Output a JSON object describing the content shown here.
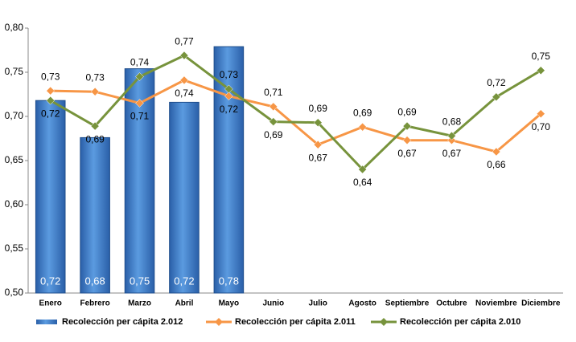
{
  "chart_data": {
    "type": "bar",
    "categories": [
      "Enero",
      "Febrero",
      "Marzo",
      "Abril",
      "Mayo",
      "Junio",
      "Julio",
      "Agosto",
      "Septiembre",
      "Octubre",
      "Noviembre",
      "Diciembre"
    ],
    "series": [
      {
        "name": "Recolección per cápita 2.012",
        "type": "bar",
        "color": "#3d7cc9",
        "values": [
          0.718,
          0.676,
          0.754,
          0.716,
          0.779,
          null,
          null,
          null,
          null,
          null,
          null,
          null
        ],
        "value_labels": [
          "0,72",
          "0,68",
          "0,75",
          "0,72",
          "0,78",
          null,
          null,
          null,
          null,
          null,
          null,
          null
        ]
      },
      {
        "name": "Recolección per cápita 2.011",
        "type": "line",
        "color": "#f79646",
        "values": [
          0.729,
          0.728,
          0.715,
          0.741,
          0.723,
          0.711,
          0.668,
          0.688,
          0.673,
          0.673,
          0.66,
          0.703
        ],
        "value_labels": [
          "0,73",
          "0,73",
          "0,71",
          "0,74",
          "0,72",
          "0,71",
          "0,67",
          "0,69",
          "0,67",
          "0,67",
          "0,66",
          "0,70"
        ]
      },
      {
        "name": "Recolección per cápita 2.010",
        "type": "line",
        "color": "#77933c",
        "values": [
          0.718,
          0.689,
          0.745,
          0.769,
          0.731,
          0.694,
          0.693,
          0.64,
          0.689,
          0.678,
          0.722,
          0.752
        ],
        "value_labels": [
          "0,72",
          "0,69",
          "0,74",
          "0,77",
          "0,73",
          "0,69",
          "0,69",
          "0,64",
          "0,69",
          "0,68",
          "0,72",
          "0,75"
        ]
      }
    ],
    "ylim": [
      0.5,
      0.8
    ],
    "yticks": [
      {
        "value": 0.5,
        "label": "0,50"
      },
      {
        "value": 0.55,
        "label": "0,55"
      },
      {
        "value": 0.6,
        "label": "0,60"
      },
      {
        "value": 0.65,
        "label": "0,65"
      },
      {
        "value": 0.7,
        "label": "0,70"
      },
      {
        "value": 0.75,
        "label": "0,75"
      },
      {
        "value": 0.8,
        "label": "0,80"
      }
    ],
    "legend": "bottom"
  }
}
